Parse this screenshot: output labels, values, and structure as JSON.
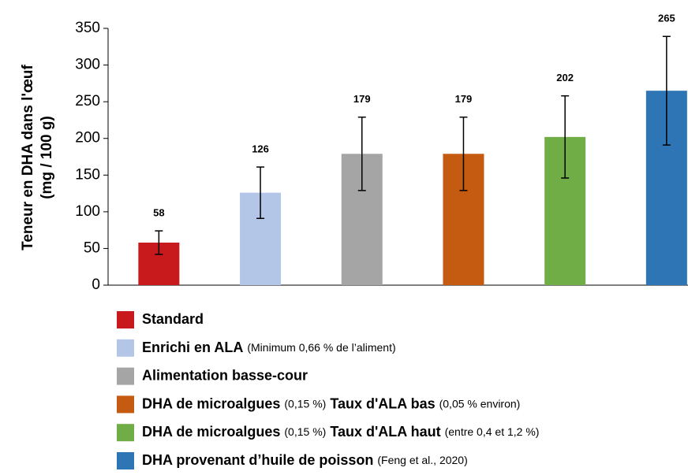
{
  "chart_data": {
    "type": "bar",
    "y_label": [
      "Teneur en DHA dans l'œuf",
      "(mg / 100 g)"
    ],
    "values": [
      58,
      126,
      179,
      179,
      202,
      265
    ],
    "errors": [
      16,
      35,
      50,
      50,
      56,
      74
    ],
    "colors": [
      "#c81a1c",
      "#b3c6e7",
      "#a5a5a5",
      "#c55a11",
      "#70ad47",
      "#2e75b6"
    ],
    "ylim": [
      0,
      350
    ],
    "yticks": [
      0,
      50,
      100,
      150,
      200,
      250,
      300,
      350
    ],
    "grid": false,
    "legend": [
      [
        {
          "text": "Standard",
          "bold": true
        }
      ],
      [
        {
          "text": "Enrichi en ALA",
          "bold": true
        },
        {
          "text": "(Minimum 0,66 % de l’aliment)",
          "bold": false
        }
      ],
      [
        {
          "text": "Alimentation basse-cour",
          "bold": true
        }
      ],
      [
        {
          "text": "DHA de microalgues",
          "bold": true
        },
        {
          "text": "(0,15 %)",
          "bold": false
        },
        {
          "text": "Taux d'ALA bas",
          "bold": true
        },
        {
          "text": "(0,05 % environ)",
          "bold": false
        }
      ],
      [
        {
          "text": "DHA de microalgues",
          "bold": true
        },
        {
          "text": "(0,15 %)",
          "bold": false
        },
        {
          "text": "Taux d'ALA haut",
          "bold": true
        },
        {
          "text": "(entre 0,4 et 1,2 %)",
          "bold": false
        }
      ],
      [
        {
          "text": "DHA provenant d’huile de poisson",
          "bold": true
        },
        {
          "text": "(Feng et al., 2020)",
          "bold": false
        }
      ]
    ]
  }
}
